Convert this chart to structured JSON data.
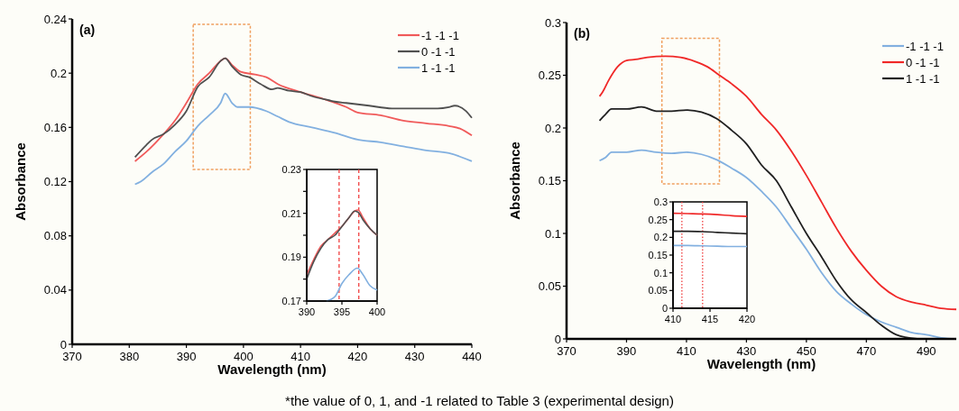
{
  "chart_data": [
    {
      "type": "line",
      "title": "(a)",
      "xlabel": "Wavelength (nm)",
      "ylabel": "Absorbance",
      "xlim": [
        370,
        440
      ],
      "xticks": [
        370,
        380,
        390,
        400,
        410,
        420,
        430,
        440
      ],
      "ylim": [
        0,
        0.24
      ],
      "yticks": [
        0,
        0.04,
        0.08,
        0.12,
        0.16,
        0.2,
        0.24
      ],
      "legend": "top right",
      "annotations": [
        "*the value of 0, 1, and -1 related to Table 3 (experimental design)"
      ],
      "series": [
        {
          "name": "-1 -1 -1",
          "color": "#f05a5a",
          "x": [
            381,
            383,
            386,
            388,
            390,
            392,
            394,
            396,
            396.8,
            398,
            399.5,
            402,
            404,
            406,
            410,
            414,
            418,
            420,
            424,
            428,
            432,
            436,
            438,
            440
          ],
          "values": [
            0.135,
            0.142,
            0.155,
            0.165,
            0.178,
            0.192,
            0.2,
            0.209,
            0.211,
            0.206,
            0.201,
            0.199,
            0.197,
            0.192,
            0.186,
            0.181,
            0.175,
            0.171,
            0.169,
            0.165,
            0.163,
            0.161,
            0.159,
            0.154
          ]
        },
        {
          "name": "0 -1 -1",
          "color": "#505050",
          "x": [
            381,
            383,
            384,
            386,
            388,
            390,
            392,
            394,
            396,
            396.8,
            398,
            399.5,
            401,
            403,
            405,
            406,
            408,
            410,
            412,
            415,
            416,
            418,
            422,
            426,
            430,
            434,
            436,
            437,
            439,
            440
          ],
          "values": [
            0.138,
            0.147,
            0.151,
            0.155,
            0.162,
            0.172,
            0.19,
            0.197,
            0.209,
            0.211,
            0.205,
            0.199,
            0.197,
            0.192,
            0.188,
            0.189,
            0.187,
            0.186,
            0.183,
            0.18,
            0.179,
            0.178,
            0.176,
            0.174,
            0.174,
            0.174,
            0.175,
            0.176,
            0.172,
            0.167
          ]
        },
        {
          "name": "1 -1 -1",
          "color": "#82b0e0",
          "x": [
            381,
            382,
            384,
            386,
            388,
            390,
            392,
            394,
            396,
            396.8,
            398,
            399,
            401,
            404,
            406,
            408,
            412,
            416,
            420,
            424,
            428,
            432,
            436,
            440
          ],
          "values": [
            0.118,
            0.12,
            0.127,
            0.133,
            0.142,
            0.15,
            0.161,
            0.169,
            0.178,
            0.185,
            0.178,
            0.175,
            0.175,
            0.172,
            0.168,
            0.164,
            0.16,
            0.156,
            0.151,
            0.149,
            0.146,
            0.143,
            0.141,
            0.135
          ]
        }
      ]
    },
    {
      "type": "line",
      "xlim": [
        390,
        400
      ],
      "xticks": [
        390,
        395,
        400
      ],
      "ylim": [
        0.17,
        0.23
      ],
      "yticks": [
        0.17,
        {
          "value": 0.18,
          "label": null
        },
        0.19,
        {
          "value": 0.2,
          "label": null
        },
        0.21,
        {
          "value": 0.22,
          "label": null
        },
        0.23
      ],
      "ref_lines": [
        {
          "axis": "x",
          "value": 394.6,
          "color": "#f04040",
          "line_style": "dashed"
        },
        {
          "axis": "x",
          "value": 397.4,
          "color": "#f04040",
          "line_style": "dashed"
        }
      ],
      "series": [
        {
          "color": "#f05a5a",
          "x": [
            390,
            391,
            392,
            393,
            394,
            395,
            396,
            396.8,
            397.3,
            398,
            399,
            400
          ],
          "values": [
            0.182,
            0.189,
            0.195,
            0.198,
            0.201,
            0.204,
            0.208,
            0.211,
            0.2115,
            0.208,
            0.203,
            0.2
          ]
        },
        {
          "color": "#505050",
          "x": [
            390,
            391,
            392,
            393,
            394,
            395,
            396,
            396.8,
            397.3,
            398,
            399,
            400
          ],
          "values": [
            0.18,
            0.188,
            0.194,
            0.198,
            0.2,
            0.204,
            0.208,
            0.211,
            0.2105,
            0.207,
            0.203,
            0.2
          ]
        },
        {
          "color": "#82b0e0",
          "x": [
            392.8,
            394,
            395,
            396,
            397.2,
            398,
            399,
            400
          ],
          "values": [
            0.17,
            0.172,
            0.178,
            0.182,
            0.185,
            0.182,
            0.177,
            0.175
          ]
        }
      ]
    },
    {
      "type": "line",
      "title": "(b)",
      "xlabel": "Wavelength (nm)",
      "ylabel": "Absorbance",
      "xlim": [
        370,
        500
      ],
      "xticks": [
        370,
        390,
        410,
        430,
        450,
        470,
        490
      ],
      "ylim": [
        0,
        0.3
      ],
      "yticks": [
        0,
        0.05,
        0.1,
        0.15,
        0.2,
        0.25,
        0.3
      ],
      "legend": "top right",
      "series": [
        {
          "name": "-1 -1 -1",
          "color": "#82b0e0",
          "x": [
            381,
            383,
            385,
            390,
            395,
            400,
            405,
            410,
            415,
            420,
            425,
            430,
            435,
            440,
            445,
            450,
            455,
            460,
            465,
            470,
            475,
            480,
            485,
            490,
            495,
            500
          ],
          "values": [
            0.169,
            0.172,
            0.177,
            0.177,
            0.179,
            0.177,
            0.176,
            0.177,
            0.175,
            0.17,
            0.162,
            0.153,
            0.14,
            0.125,
            0.105,
            0.085,
            0.063,
            0.045,
            0.033,
            0.023,
            0.016,
            0.011,
            0.006,
            0.004,
            0.001,
            0
          ]
        },
        {
          "name": "0 -1 -1",
          "color": "#f02828",
          "x": [
            381,
            382,
            384,
            387,
            390,
            393,
            397,
            403,
            408,
            413,
            417,
            421,
            425,
            430,
            435,
            440,
            445,
            450,
            455,
            460,
            465,
            470,
            475,
            480,
            485,
            490,
            495,
            500
          ],
          "values": [
            0.23,
            0.234,
            0.245,
            0.258,
            0.264,
            0.265,
            0.267,
            0.268,
            0.267,
            0.263,
            0.258,
            0.25,
            0.242,
            0.23,
            0.213,
            0.198,
            0.178,
            0.155,
            0.13,
            0.105,
            0.083,
            0.065,
            0.05,
            0.04,
            0.035,
            0.032,
            0.029,
            0.028
          ]
        },
        {
          "name": "1 -1 -1",
          "color": "#202020",
          "x": [
            381,
            383,
            385,
            390,
            395,
            400,
            405,
            410,
            415,
            420,
            425,
            430,
            435,
            440,
            445,
            450,
            455,
            460,
            465,
            470,
            475,
            480,
            487
          ],
          "values": [
            0.207,
            0.213,
            0.218,
            0.218,
            0.22,
            0.216,
            0.216,
            0.217,
            0.215,
            0.209,
            0.198,
            0.185,
            0.165,
            0.15,
            0.125,
            0.1,
            0.078,
            0.055,
            0.037,
            0.025,
            0.013,
            0.004,
            0
          ]
        }
      ]
    },
    {
      "type": "line",
      "xlim": [
        410,
        420
      ],
      "xticks": [
        410,
        415,
        420
      ],
      "ylim": [
        0,
        0.3
      ],
      "yticks": [
        0,
        0.05,
        0.1,
        0.15,
        0.2,
        0.25,
        0.3
      ],
      "ref_lines": [
        {
          "axis": "x",
          "value": 411.2,
          "color": "#f04040",
          "line_style": "dotted"
        },
        {
          "axis": "x",
          "value": 414,
          "color": "#f04040",
          "line_style": "dotted"
        }
      ],
      "series": [
        {
          "color": "#f02828",
          "x": [
            410,
            412,
            414,
            416,
            418,
            420
          ],
          "values": [
            0.268,
            0.267,
            0.266,
            0.264,
            0.261,
            0.259
          ]
        },
        {
          "color": "#202020",
          "x": [
            410,
            412,
            414,
            416,
            418,
            420
          ],
          "values": [
            0.217,
            0.217,
            0.216,
            0.214,
            0.212,
            0.21
          ]
        },
        {
          "color": "#82b0e0",
          "x": [
            410,
            412,
            414,
            416,
            418,
            420
          ],
          "values": [
            0.177,
            0.177,
            0.176,
            0.175,
            0.174,
            0.174
          ]
        }
      ]
    }
  ]
}
